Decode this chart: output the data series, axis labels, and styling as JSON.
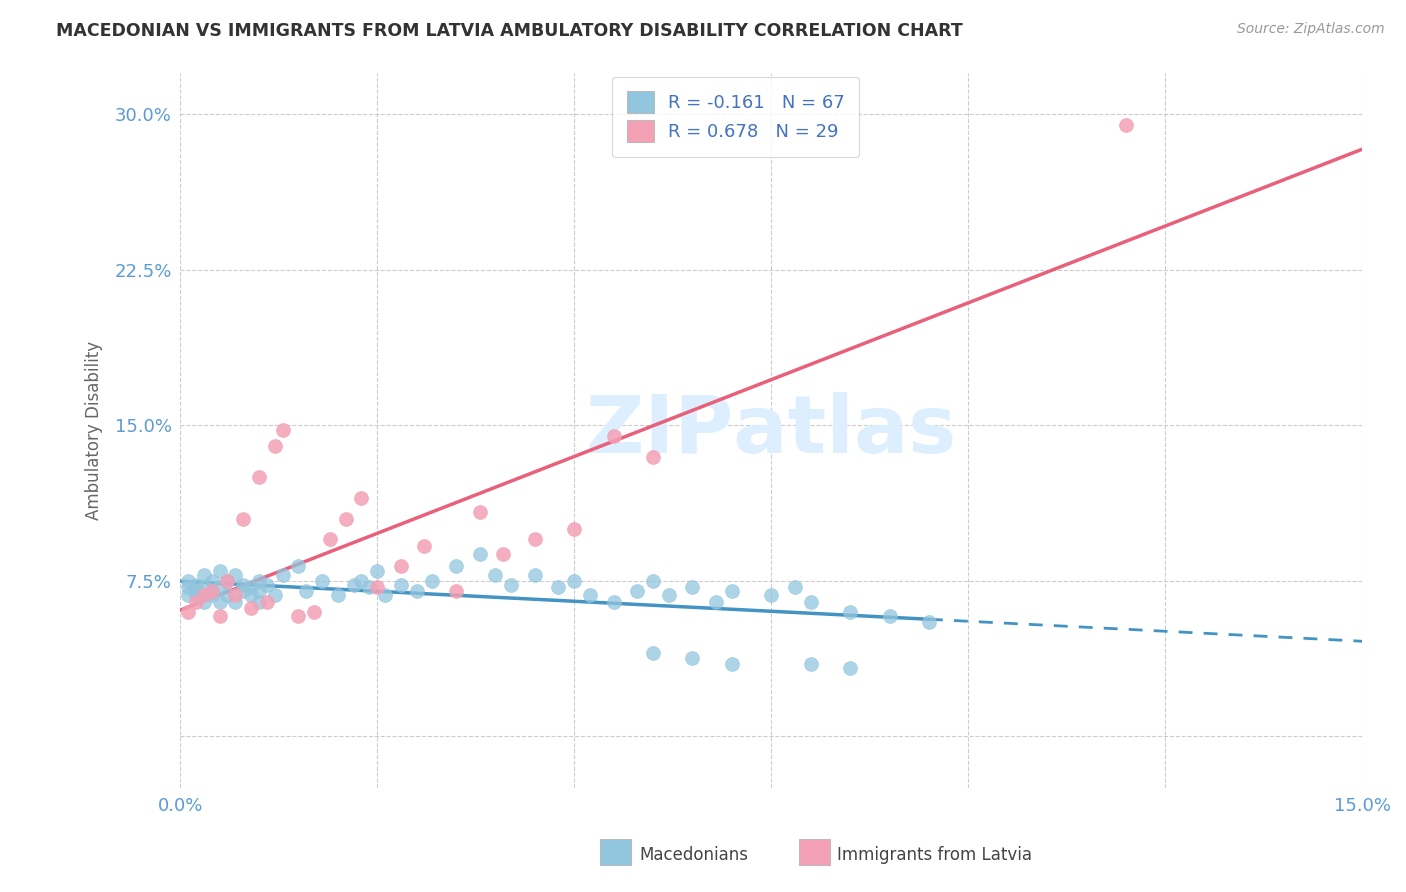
{
  "title": "MACEDONIAN VS IMMIGRANTS FROM LATVIA AMBULATORY DISABILITY CORRELATION CHART",
  "source_text": "Source: ZipAtlas.com",
  "ylabel": "Ambulatory Disability",
  "xlim": [
    0.0,
    0.15
  ],
  "ylim": [
    -0.025,
    0.32
  ],
  "xticks": [
    0.0,
    0.025,
    0.05,
    0.075,
    0.1,
    0.125,
    0.15
  ],
  "xtick_labels": [
    "0.0%",
    "",
    "",
    "",
    "",
    "",
    "15.0%"
  ],
  "yticks": [
    0.0,
    0.075,
    0.15,
    0.225,
    0.3
  ],
  "ytick_labels": [
    "",
    "7.5%",
    "15.0%",
    "22.5%",
    "30.0%"
  ],
  "legend_macedonian": "R = -0.161   N = 67",
  "legend_latvian": "R = 0.678   N = 29",
  "macedonian_color": "#92c5de",
  "latvian_color": "#f4a0b5",
  "macedonian_line_color": "#4393c3",
  "latvian_line_color": "#e8607a",
  "background_color": "#ffffff",
  "grid_color": "#cccccc",
  "axis_label_color": "#5b9bd5",
  "watermark_color": "#ddeeff",
  "macedonians_scatter_x": [
    0.001,
    0.001,
    0.001,
    0.002,
    0.002,
    0.002,
    0.003,
    0.003,
    0.003,
    0.004,
    0.004,
    0.004,
    0.005,
    0.005,
    0.005,
    0.006,
    0.006,
    0.007,
    0.007,
    0.008,
    0.008,
    0.009,
    0.009,
    0.01,
    0.01,
    0.01,
    0.011,
    0.012,
    0.013,
    0.015,
    0.016,
    0.018,
    0.02,
    0.022,
    0.023,
    0.024,
    0.025,
    0.026,
    0.028,
    0.03,
    0.032,
    0.035,
    0.038,
    0.04,
    0.042,
    0.045,
    0.048,
    0.05,
    0.052,
    0.055,
    0.058,
    0.06,
    0.062,
    0.065,
    0.068,
    0.07,
    0.075,
    0.078,
    0.08,
    0.085,
    0.09,
    0.095,
    0.06,
    0.065,
    0.07,
    0.08,
    0.085
  ],
  "macedonians_scatter_y": [
    0.072,
    0.068,
    0.075,
    0.07,
    0.073,
    0.068,
    0.078,
    0.065,
    0.072,
    0.075,
    0.07,
    0.068,
    0.08,
    0.072,
    0.065,
    0.075,
    0.068,
    0.078,
    0.065,
    0.073,
    0.07,
    0.072,
    0.068,
    0.075,
    0.065,
    0.07,
    0.073,
    0.068,
    0.078,
    0.082,
    0.07,
    0.075,
    0.068,
    0.073,
    0.075,
    0.072,
    0.08,
    0.068,
    0.073,
    0.07,
    0.075,
    0.082,
    0.088,
    0.078,
    0.073,
    0.078,
    0.072,
    0.075,
    0.068,
    0.065,
    0.07,
    0.075,
    0.068,
    0.072,
    0.065,
    0.07,
    0.068,
    0.072,
    0.065,
    0.06,
    0.058,
    0.055,
    0.04,
    0.038,
    0.035,
    0.035,
    0.033
  ],
  "latvian_scatter_x": [
    0.001,
    0.002,
    0.003,
    0.004,
    0.005,
    0.006,
    0.007,
    0.008,
    0.009,
    0.01,
    0.011,
    0.012,
    0.013,
    0.015,
    0.017,
    0.019,
    0.021,
    0.023,
    0.025,
    0.028,
    0.031,
    0.035,
    0.038,
    0.041,
    0.045,
    0.05,
    0.055,
    0.06,
    0.12
  ],
  "latvian_scatter_y": [
    0.06,
    0.065,
    0.068,
    0.07,
    0.058,
    0.075,
    0.068,
    0.105,
    0.062,
    0.125,
    0.065,
    0.14,
    0.148,
    0.058,
    0.06,
    0.095,
    0.105,
    0.115,
    0.072,
    0.082,
    0.092,
    0.07,
    0.108,
    0.088,
    0.095,
    0.1,
    0.145,
    0.135,
    0.295
  ]
}
